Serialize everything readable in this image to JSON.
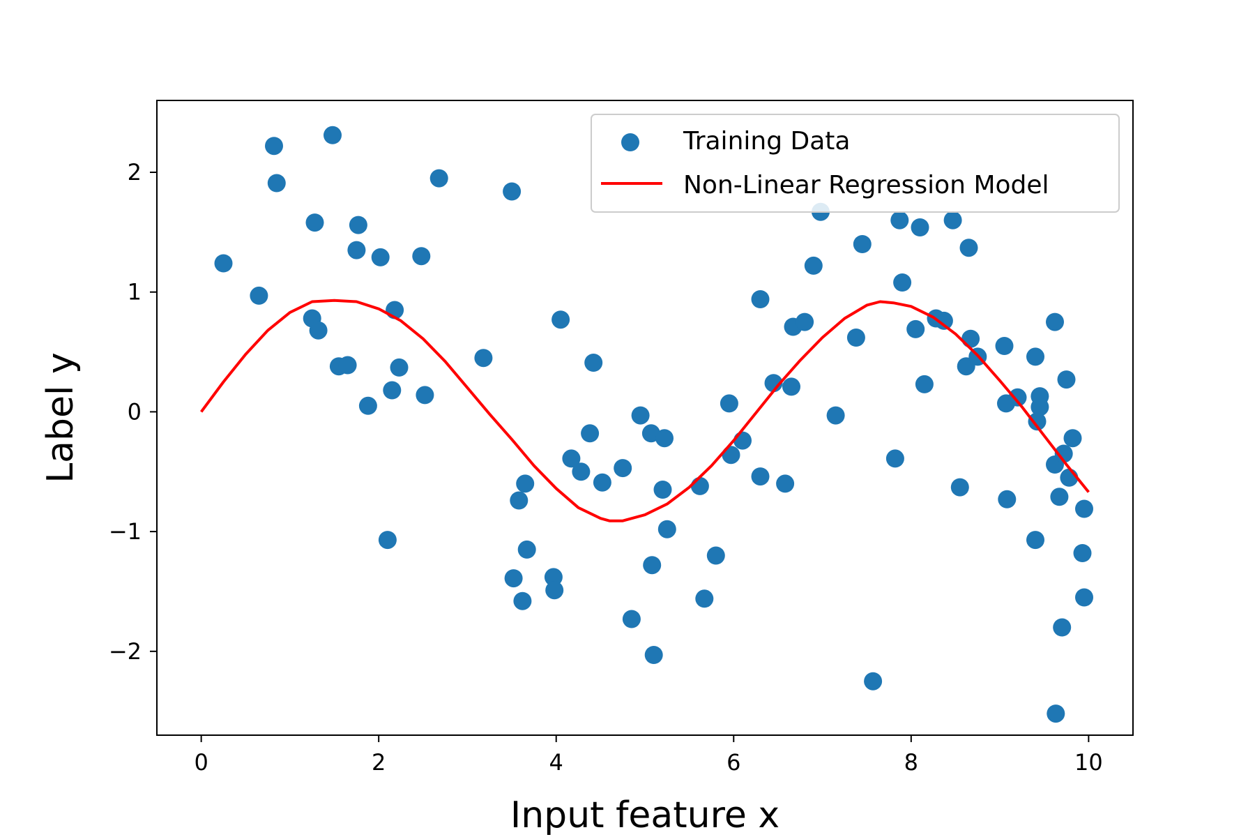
{
  "chart_data": {
    "type": "scatter",
    "title": "",
    "xlabel": "Input feature x",
    "ylabel": "Label y",
    "xlim": [
      -0.5,
      10.5
    ],
    "ylim": [
      -2.7,
      2.6
    ],
    "xticks": [
      0,
      2,
      4,
      6,
      8,
      10
    ],
    "yticks": [
      -2,
      -1,
      0,
      1,
      2
    ],
    "grid": false,
    "legend_position": "top-right",
    "series": [
      {
        "name": "Training Data",
        "kind": "scatter",
        "color": "#1f77b4",
        "points": [
          [
            0.25,
            1.24
          ],
          [
            0.65,
            0.97
          ],
          [
            0.82,
            2.22
          ],
          [
            0.85,
            1.91
          ],
          [
            1.25,
            0.78
          ],
          [
            1.28,
            1.58
          ],
          [
            1.32,
            0.68
          ],
          [
            1.48,
            2.31
          ],
          [
            1.55,
            0.38
          ],
          [
            1.65,
            0.39
          ],
          [
            1.75,
            1.35
          ],
          [
            1.77,
            1.56
          ],
          [
            1.88,
            0.05
          ],
          [
            2.02,
            1.29
          ],
          [
            2.1,
            -1.07
          ],
          [
            2.15,
            0.18
          ],
          [
            2.18,
            0.85
          ],
          [
            2.23,
            0.37
          ],
          [
            2.48,
            1.3
          ],
          [
            2.52,
            0.14
          ],
          [
            2.68,
            1.95
          ],
          [
            3.18,
            0.45
          ],
          [
            3.5,
            1.84
          ],
          [
            3.52,
            -1.39
          ],
          [
            3.58,
            -0.74
          ],
          [
            3.62,
            -1.58
          ],
          [
            3.65,
            -0.6
          ],
          [
            3.67,
            -1.15
          ],
          [
            3.97,
            -1.38
          ],
          [
            3.98,
            -1.49
          ],
          [
            4.05,
            0.77
          ],
          [
            4.17,
            -0.39
          ],
          [
            4.28,
            -0.5
          ],
          [
            4.38,
            -0.18
          ],
          [
            4.42,
            0.41
          ],
          [
            4.52,
            -0.59
          ],
          [
            4.75,
            -0.47
          ],
          [
            4.85,
            -1.73
          ],
          [
            4.95,
            -0.03
          ],
          [
            5.07,
            -0.18
          ],
          [
            5.08,
            -1.28
          ],
          [
            5.1,
            -2.03
          ],
          [
            5.2,
            -0.65
          ],
          [
            5.22,
            -0.22
          ],
          [
            5.25,
            -0.98
          ],
          [
            5.62,
            -0.62
          ],
          [
            5.67,
            -1.56
          ],
          [
            5.8,
            -1.2
          ],
          [
            5.95,
            0.07
          ],
          [
            5.97,
            -0.36
          ],
          [
            6.1,
            -0.24
          ],
          [
            6.3,
            0.94
          ],
          [
            6.3,
            -0.54
          ],
          [
            6.45,
            0.24
          ],
          [
            6.58,
            -0.6
          ],
          [
            6.65,
            0.21
          ],
          [
            6.67,
            0.71
          ],
          [
            6.8,
            0.75
          ],
          [
            6.9,
            1.22
          ],
          [
            6.98,
            1.67
          ],
          [
            7.15,
            -0.03
          ],
          [
            7.38,
            0.62
          ],
          [
            7.45,
            1.4
          ],
          [
            7.57,
            -2.25
          ],
          [
            7.82,
            -0.39
          ],
          [
            7.87,
            1.6
          ],
          [
            7.9,
            1.08
          ],
          [
            8.05,
            0.69
          ],
          [
            8.1,
            1.54
          ],
          [
            8.15,
            0.23
          ],
          [
            8.28,
            0.78
          ],
          [
            8.37,
            0.76
          ],
          [
            8.47,
            1.6
          ],
          [
            8.55,
            -0.63
          ],
          [
            8.62,
            0.38
          ],
          [
            8.65,
            1.37
          ],
          [
            8.67,
            0.61
          ],
          [
            8.75,
            0.46
          ],
          [
            9.05,
            0.55
          ],
          [
            9.07,
            0.07
          ],
          [
            9.08,
            -0.73
          ],
          [
            9.2,
            0.12
          ],
          [
            9.4,
            0.46
          ],
          [
            9.4,
            -1.07
          ],
          [
            9.42,
            -0.08
          ],
          [
            9.45,
            0.13
          ],
          [
            9.45,
            0.04
          ],
          [
            9.62,
            0.75
          ],
          [
            9.62,
            -0.44
          ],
          [
            9.63,
            -2.52
          ],
          [
            9.67,
            -0.71
          ],
          [
            9.7,
            -1.8
          ],
          [
            9.72,
            -0.35
          ],
          [
            9.75,
            0.27
          ],
          [
            9.78,
            -0.55
          ],
          [
            9.82,
            -0.22
          ],
          [
            9.93,
            -1.18
          ],
          [
            9.95,
            -0.81
          ],
          [
            9.95,
            -1.55
          ]
        ]
      },
      {
        "name": "Non-Linear Regression Model",
        "kind": "line",
        "color": "#ff0000",
        "points": [
          [
            0.0,
            0.0
          ],
          [
            0.25,
            0.25
          ],
          [
            0.5,
            0.48
          ],
          [
            0.75,
            0.68
          ],
          [
            1.0,
            0.83
          ],
          [
            1.25,
            0.92
          ],
          [
            1.5,
            0.93
          ],
          [
            1.75,
            0.92
          ],
          [
            2.0,
            0.86
          ],
          [
            2.25,
            0.76
          ],
          [
            2.5,
            0.61
          ],
          [
            2.75,
            0.42
          ],
          [
            3.0,
            0.2
          ],
          [
            3.25,
            -0.02
          ],
          [
            3.5,
            -0.23
          ],
          [
            3.75,
            -0.45
          ],
          [
            4.0,
            -0.64
          ],
          [
            4.25,
            -0.8
          ],
          [
            4.5,
            -0.89
          ],
          [
            4.6,
            -0.91
          ],
          [
            4.75,
            -0.91
          ],
          [
            5.0,
            -0.86
          ],
          [
            5.25,
            -0.77
          ],
          [
            5.5,
            -0.63
          ],
          [
            5.75,
            -0.45
          ],
          [
            6.0,
            -0.24
          ],
          [
            6.25,
            -0.01
          ],
          [
            6.5,
            0.22
          ],
          [
            6.75,
            0.43
          ],
          [
            7.0,
            0.62
          ],
          [
            7.25,
            0.78
          ],
          [
            7.5,
            0.89
          ],
          [
            7.65,
            0.92
          ],
          [
            7.8,
            0.91
          ],
          [
            8.0,
            0.88
          ],
          [
            8.25,
            0.79
          ],
          [
            8.5,
            0.65
          ],
          [
            8.75,
            0.47
          ],
          [
            9.0,
            0.26
          ],
          [
            9.25,
            0.04
          ],
          [
            9.5,
            -0.2
          ],
          [
            9.75,
            -0.44
          ],
          [
            10.0,
            -0.67
          ]
        ]
      }
    ]
  }
}
